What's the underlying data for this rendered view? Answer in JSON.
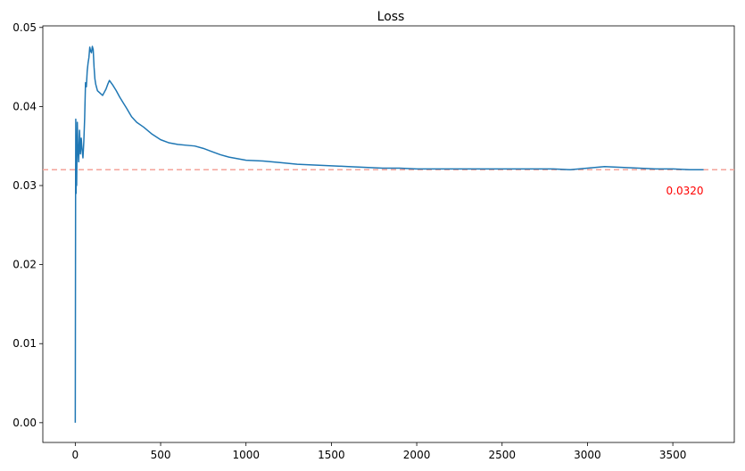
{
  "chart_data": {
    "type": "line",
    "title": "Loss",
    "xlabel": "",
    "ylabel": "",
    "xlim": [
      -190,
      3860
    ],
    "ylim": [
      -0.0025,
      0.0502
    ],
    "x_ticks": [
      0,
      500,
      1000,
      1500,
      2000,
      2500,
      3000,
      3500
    ],
    "x_tick_labels": [
      "0",
      "500",
      "1000",
      "1500",
      "2000",
      "2500",
      "3000",
      "3500"
    ],
    "y_ticks": [
      0.0,
      0.01,
      0.02,
      0.03,
      0.04,
      0.05
    ],
    "y_tick_labels": [
      "0.00",
      "0.01",
      "0.02",
      "0.03",
      "0.04",
      "0.05"
    ],
    "grid": false,
    "series": [
      {
        "name": "loss",
        "color": "#1f77b4",
        "x": [
          0,
          1,
          2,
          3,
          4,
          5,
          6,
          8,
          10,
          12,
          15,
          20,
          25,
          30,
          35,
          40,
          45,
          50,
          55,
          60,
          65,
          70,
          75,
          80,
          85,
          90,
          95,
          100,
          105,
          110,
          115,
          120,
          130,
          140,
          150,
          160,
          170,
          180,
          190,
          200,
          210,
          220,
          240,
          260,
          280,
          300,
          330,
          360,
          400,
          450,
          500,
          550,
          600,
          650,
          700,
          750,
          800,
          850,
          900,
          950,
          1000,
          1100,
          1200,
          1300,
          1400,
          1500,
          1600,
          1700,
          1800,
          1900,
          2000,
          2100,
          2200,
          2300,
          2400,
          2500,
          2600,
          2700,
          2800,
          2900,
          2950,
          3000,
          3050,
          3100,
          3200,
          3300,
          3400,
          3500,
          3600,
          3680
        ],
        "y": [
          0.0,
          0.015,
          0.03,
          0.0384,
          0.032,
          0.029,
          0.035,
          0.03,
          0.034,
          0.038,
          0.035,
          0.033,
          0.037,
          0.034,
          0.036,
          0.0345,
          0.0335,
          0.0355,
          0.0385,
          0.043,
          0.0425,
          0.0445,
          0.0455,
          0.0462,
          0.0475,
          0.047,
          0.0468,
          0.0476,
          0.0472,
          0.045,
          0.0435,
          0.0428,
          0.042,
          0.0418,
          0.0416,
          0.0414,
          0.0418,
          0.0422,
          0.0428,
          0.0433,
          0.043,
          0.0427,
          0.042,
          0.0412,
          0.0405,
          0.0398,
          0.0387,
          0.038,
          0.0374,
          0.0365,
          0.0358,
          0.0354,
          0.0352,
          0.0351,
          0.035,
          0.0347,
          0.0343,
          0.0339,
          0.0336,
          0.0334,
          0.0332,
          0.0331,
          0.0329,
          0.0327,
          0.0326,
          0.0325,
          0.0324,
          0.0323,
          0.0322,
          0.0322,
          0.0321,
          0.0321,
          0.0321,
          0.0321,
          0.0321,
          0.0321,
          0.0321,
          0.0321,
          0.0321,
          0.032,
          0.0321,
          0.0322,
          0.0323,
          0.0324,
          0.0323,
          0.0322,
          0.0321,
          0.0321,
          0.032,
          0.032
        ]
      }
    ],
    "reference_line": {
      "y": 0.032,
      "color": "#f4a39a",
      "style": "dashed"
    },
    "annotation": {
      "text": "0.0320",
      "x": 3570,
      "y": 0.0293,
      "color": "#ff0000"
    }
  }
}
